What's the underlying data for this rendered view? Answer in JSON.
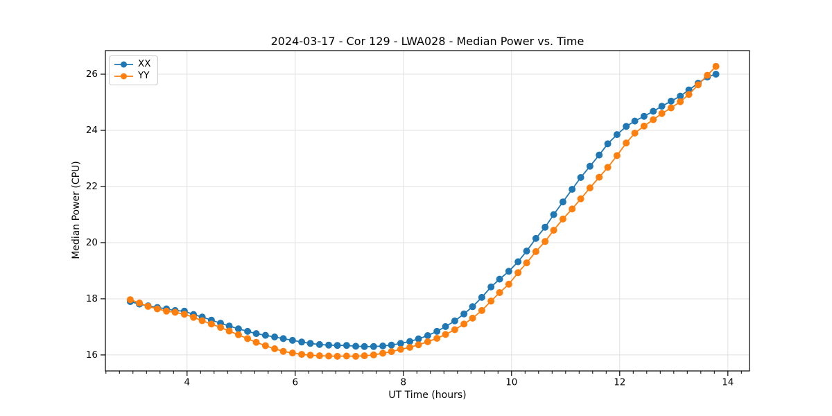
{
  "chart_data": {
    "type": "line",
    "title": "2024-03-17 - Cor 129 - LWA028 - Median Power vs. Time",
    "xlabel": "UT Time (hours)",
    "ylabel": "Median Power (CPU)",
    "xlim": [
      2.49,
      14.4
    ],
    "ylim": [
      15.43,
      26.84
    ],
    "x_ticks": [
      4,
      6,
      8,
      10,
      12,
      14
    ],
    "y_ticks": [
      16,
      18,
      20,
      22,
      24,
      26
    ],
    "x_minor_step": 0.25,
    "grid": true,
    "grid_color": "#e0e0e0",
    "axis_color": "#000000",
    "background_color": "#ffffff",
    "legend_position": "upper-left",
    "x": [
      2.95,
      3.12,
      3.28,
      3.45,
      3.62,
      3.78,
      3.95,
      4.12,
      4.28,
      4.45,
      4.62,
      4.78,
      4.95,
      5.12,
      5.28,
      5.45,
      5.62,
      5.78,
      5.95,
      6.12,
      6.28,
      6.45,
      6.62,
      6.78,
      6.95,
      7.12,
      7.28,
      7.45,
      7.62,
      7.78,
      7.95,
      8.12,
      8.28,
      8.45,
      8.62,
      8.78,
      8.95,
      9.12,
      9.28,
      9.45,
      9.62,
      9.78,
      9.95,
      10.12,
      10.28,
      10.45,
      10.62,
      10.78,
      10.95,
      11.12,
      11.28,
      11.45,
      11.62,
      11.78,
      11.95,
      12.12,
      12.28,
      12.45,
      12.62,
      12.78,
      12.95,
      13.12,
      13.28,
      13.45,
      13.62,
      13.78
    ],
    "series": [
      {
        "name": "XX",
        "color": "#1f77b4",
        "values": [
          17.9,
          17.81,
          17.75,
          17.69,
          17.64,
          17.58,
          17.56,
          17.44,
          17.35,
          17.24,
          17.13,
          17.03,
          16.93,
          16.84,
          16.76,
          16.7,
          16.64,
          16.58,
          16.52,
          16.46,
          16.41,
          16.37,
          16.35,
          16.34,
          16.34,
          16.31,
          16.3,
          16.3,
          16.32,
          16.35,
          16.41,
          16.48,
          16.57,
          16.69,
          16.84,
          17.01,
          17.21,
          17.46,
          17.72,
          18.05,
          18.42,
          18.7,
          18.98,
          19.32,
          19.7,
          20.15,
          20.55,
          21.0,
          21.45,
          21.9,
          22.32,
          22.72,
          23.12,
          23.52,
          23.85,
          24.14,
          24.33,
          24.5,
          24.68,
          24.86,
          25.04,
          25.22,
          25.44,
          25.68,
          25.9,
          26.0
        ]
      },
      {
        "name": "YY",
        "color": "#ff7f0e",
        "values": [
          17.97,
          17.85,
          17.73,
          17.64,
          17.56,
          17.52,
          17.45,
          17.34,
          17.22,
          17.1,
          16.98,
          16.85,
          16.72,
          16.58,
          16.45,
          16.33,
          16.22,
          16.13,
          16.07,
          16.02,
          15.99,
          15.97,
          15.96,
          15.95,
          15.96,
          15.95,
          15.97,
          16.0,
          16.06,
          16.12,
          16.2,
          16.27,
          16.36,
          16.47,
          16.59,
          16.73,
          16.9,
          17.1,
          17.31,
          17.58,
          17.92,
          18.22,
          18.52,
          18.93,
          19.28,
          19.68,
          20.04,
          20.44,
          20.84,
          21.2,
          21.56,
          21.95,
          22.33,
          22.68,
          23.1,
          23.55,
          23.9,
          24.15,
          24.38,
          24.6,
          24.8,
          25.02,
          25.28,
          25.62,
          25.96,
          26.28
        ]
      }
    ]
  }
}
